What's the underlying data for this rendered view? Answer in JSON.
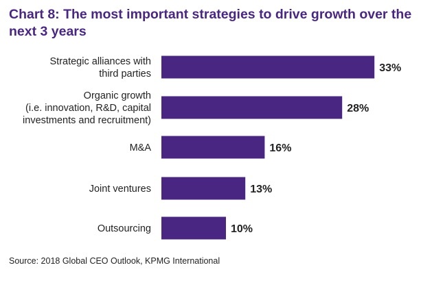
{
  "chart_data": {
    "type": "bar",
    "orientation": "horizontal",
    "title": "Chart 8: The most important strategies to drive growth over the next 3 years",
    "categories": [
      [
        "Strategic alliances with",
        "third parties"
      ],
      [
        "Organic growth",
        "(i.e. innovation, R&D, capital",
        "investments and recruitment)"
      ],
      [
        "M&A"
      ],
      [
        "Joint ventures"
      ],
      [
        "Outsourcing"
      ]
    ],
    "values": [
      33,
      28,
      16,
      13,
      10
    ],
    "value_labels": [
      "33%",
      "28%",
      "16%",
      "13%",
      "10%"
    ],
    "unit": "%",
    "bar_color": "#4a2683",
    "grid": false,
    "legend": "none",
    "source": "Source: 2018 Global CEO Outlook, KPMG International"
  }
}
